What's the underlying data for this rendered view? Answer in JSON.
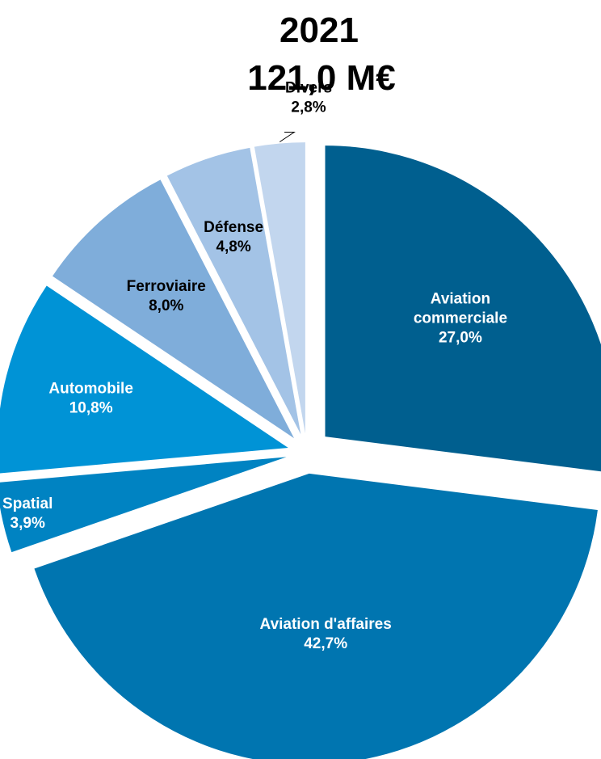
{
  "chart_data": {
    "type": "pie",
    "title": "2021",
    "subtitle": "121,0 M€",
    "slices": [
      {
        "label": "Aviation\ncommerciale",
        "value": 27.0,
        "value_label": "27,0%",
        "color": "#005f8f",
        "text_color": "#ffffff"
      },
      {
        "label": "Aviation d'affaires",
        "value": 42.7,
        "value_label": "42,7%",
        "color": "#0075b0",
        "text_color": "#ffffff"
      },
      {
        "label": "Spatial",
        "value": 3.9,
        "value_label": "3,9%",
        "color": "#0083c2",
        "text_color": "#ffffff"
      },
      {
        "label": "Automobile",
        "value": 10.8,
        "value_label": "10,8%",
        "color": "#0093d6",
        "text_color": "#ffffff"
      },
      {
        "label": "Ferroviaire",
        "value": 8.0,
        "value_label": "8,0%",
        "color": "#7fadda",
        "text_color": "#000000"
      },
      {
        "label": "Défense",
        "value": 4.8,
        "value_label": "4,8%",
        "color": "#a3c3e6",
        "text_color": "#000000"
      },
      {
        "label": "Divers",
        "value": 2.8,
        "value_label": "2,8%",
        "color": "#c2d6ee",
        "text_color": "#000000"
      }
    ],
    "legend": "none"
  }
}
